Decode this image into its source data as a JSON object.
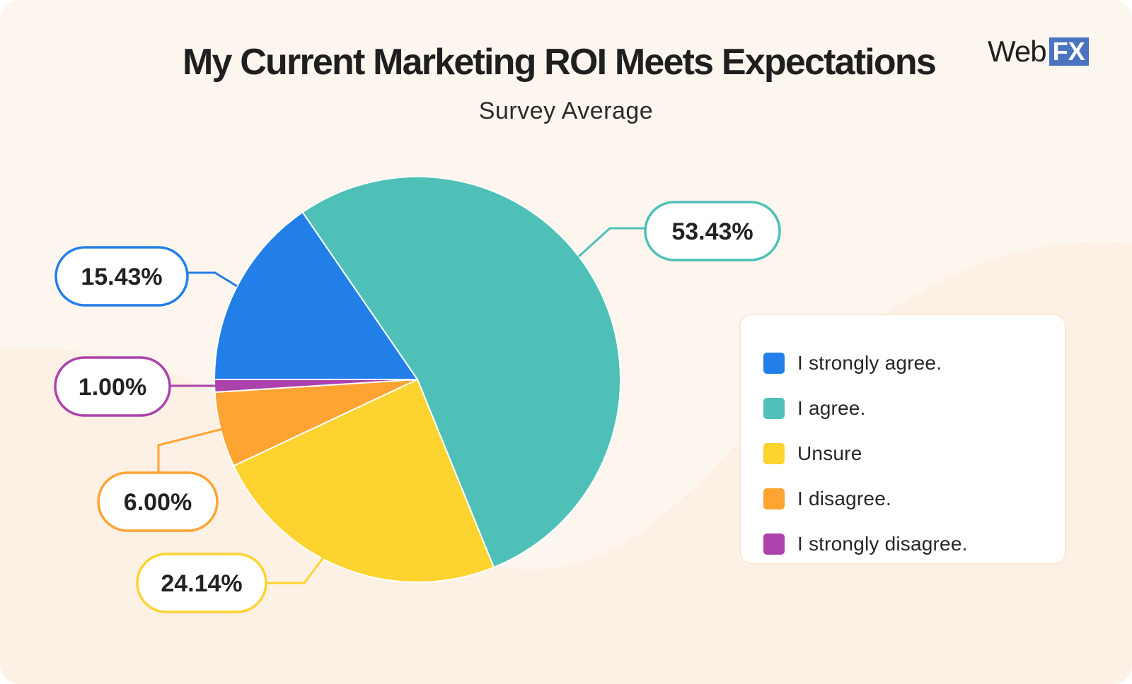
{
  "header": {
    "title": "My Current Marketing ROI Meets Expectations",
    "subtitle": "Survey Average",
    "logo_text": "Web",
    "logo_badge": "FX"
  },
  "colors": {
    "background": "#fdf6ef",
    "logo_badge": "#4a74bf"
  },
  "chart_data": {
    "type": "pie",
    "title": "My Current Marketing ROI Meets Expectations",
    "subtitle": "Survey Average",
    "legend_position": "right",
    "slices": [
      {
        "label": "I strongly agree.",
        "value": 15.43,
        "display": "15.43%",
        "color": "#237fe8"
      },
      {
        "label": "I agree.",
        "value": 53.43,
        "display": "53.43%",
        "color": "#4fc0b8"
      },
      {
        "label": "Unsure",
        "value": 24.14,
        "display": "24.14%",
        "color": "#fdd32f"
      },
      {
        "label": "I disagree.",
        "value": 6.0,
        "display": "6.00%",
        "color": "#fea433"
      },
      {
        "label": "I strongly disagree.",
        "value": 1.0,
        "display": "1.00%",
        "color": "#ac42ab"
      }
    ]
  }
}
